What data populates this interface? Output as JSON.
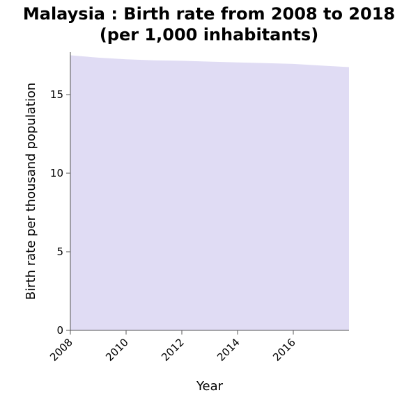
{
  "chart_data": {
    "type": "area",
    "title_line1": "Malaysia : Birth rate from 2008 to 2018",
    "title_line2": "(per 1,000 inhabitants)",
    "xlabel": "Year",
    "ylabel": "Birth rate per thousand population",
    "x": [
      2008,
      2009,
      2010,
      2011,
      2012,
      2013,
      2014,
      2015,
      2016,
      2017,
      2018
    ],
    "values": [
      17.5,
      17.35,
      17.25,
      17.18,
      17.15,
      17.1,
      17.05,
      17.0,
      16.95,
      16.85,
      16.75
    ],
    "xlim": [
      2008,
      2018
    ],
    "ylim": [
      0,
      17.5
    ],
    "x_ticks": [
      2008,
      2010,
      2012,
      2014,
      2016
    ],
    "y_ticks": [
      0,
      5,
      10,
      15
    ],
    "fill_color": "#e0dcf4",
    "grid": false
  }
}
